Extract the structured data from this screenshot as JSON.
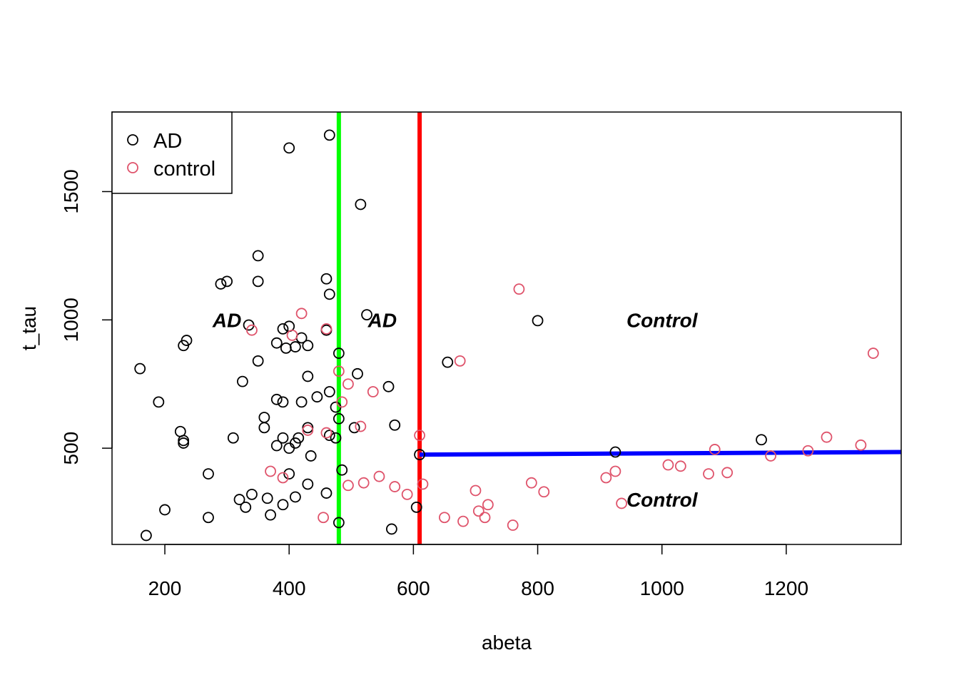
{
  "chart_data": {
    "type": "scatter",
    "xlabel": "abeta",
    "ylabel": "t_tau",
    "xlim": [
      115,
      1385
    ],
    "ylim": [
      125,
      1810
    ],
    "x_ticks": [
      200,
      400,
      600,
      800,
      1000,
      1200
    ],
    "y_ticks": [
      500,
      1000,
      1500
    ],
    "x_tick_labels": [
      "200",
      "400",
      "600",
      "800",
      "1000",
      "1200"
    ],
    "y_tick_labels": [
      "500",
      "1000",
      "1500"
    ],
    "grid": false,
    "legend": {
      "position": "top-left",
      "entries": [
        "AD",
        "control"
      ]
    },
    "series": [
      {
        "name": "AD",
        "color": "#000000",
        "marker": "open-circle",
        "points": [
          [
            465,
            1720
          ],
          [
            400,
            1670
          ],
          [
            515,
            1450
          ],
          [
            350,
            1250
          ],
          [
            460,
            1160
          ],
          [
            290,
            1140
          ],
          [
            300,
            1150
          ],
          [
            350,
            1150
          ],
          [
            465,
            1100
          ],
          [
            525,
            1020
          ],
          [
            335,
            980
          ],
          [
            400,
            975
          ],
          [
            800,
            997
          ],
          [
            390,
            965
          ],
          [
            460,
            960
          ],
          [
            235,
            920
          ],
          [
            230,
            900
          ],
          [
            380,
            910
          ],
          [
            420,
            930
          ],
          [
            395,
            890
          ],
          [
            410,
            895
          ],
          [
            430,
            900
          ],
          [
            480,
            870
          ],
          [
            160,
            810
          ],
          [
            350,
            840
          ],
          [
            655,
            835
          ],
          [
            325,
            760
          ],
          [
            430,
            780
          ],
          [
            510,
            790
          ],
          [
            465,
            720
          ],
          [
            445,
            700
          ],
          [
            560,
            740
          ],
          [
            190,
            680
          ],
          [
            380,
            690
          ],
          [
            390,
            680
          ],
          [
            420,
            680
          ],
          [
            475,
            660
          ],
          [
            360,
            620
          ],
          [
            480,
            615
          ],
          [
            360,
            580
          ],
          [
            430,
            580
          ],
          [
            570,
            590
          ],
          [
            505,
            580
          ],
          [
            225,
            565
          ],
          [
            230,
            530
          ],
          [
            230,
            520
          ],
          [
            310,
            540
          ],
          [
            390,
            540
          ],
          [
            415,
            540
          ],
          [
            465,
            550
          ],
          [
            475,
            540
          ],
          [
            380,
            510
          ],
          [
            400,
            500
          ],
          [
            410,
            520
          ],
          [
            435,
            470
          ],
          [
            610,
            475
          ],
          [
            925,
            485
          ],
          [
            1160,
            533
          ],
          [
            270,
            400
          ],
          [
            400,
            400
          ],
          [
            485,
            415
          ],
          [
            430,
            360
          ],
          [
            460,
            325
          ],
          [
            340,
            320
          ],
          [
            320,
            300
          ],
          [
            365,
            305
          ],
          [
            410,
            310
          ],
          [
            330,
            270
          ],
          [
            390,
            280
          ],
          [
            605,
            270
          ],
          [
            200,
            260
          ],
          [
            270,
            230
          ],
          [
            370,
            240
          ],
          [
            480,
            210
          ],
          [
            565,
            185
          ],
          [
            170,
            160
          ]
        ]
      },
      {
        "name": "control",
        "color": "#df536b",
        "marker": "open-circle",
        "points": [
          [
            770,
            1120
          ],
          [
            1340,
            870
          ],
          [
            420,
            1025
          ],
          [
            340,
            960
          ],
          [
            460,
            965
          ],
          [
            405,
            940
          ],
          [
            675,
            840
          ],
          [
            480,
            800
          ],
          [
            495,
            750
          ],
          [
            535,
            720
          ],
          [
            485,
            680
          ],
          [
            610,
            550
          ],
          [
            430,
            570
          ],
          [
            460,
            560
          ],
          [
            515,
            585
          ],
          [
            1265,
            543
          ],
          [
            1320,
            512
          ],
          [
            1085,
            495
          ],
          [
            1235,
            490
          ],
          [
            1175,
            470
          ],
          [
            1010,
            435
          ],
          [
            1030,
            430
          ],
          [
            1075,
            400
          ],
          [
            1105,
            405
          ],
          [
            925,
            410
          ],
          [
            910,
            385
          ],
          [
            370,
            410
          ],
          [
            390,
            385
          ],
          [
            495,
            355
          ],
          [
            520,
            365
          ],
          [
            545,
            390
          ],
          [
            570,
            350
          ],
          [
            590,
            320
          ],
          [
            615,
            360
          ],
          [
            700,
            335
          ],
          [
            790,
            365
          ],
          [
            810,
            330
          ],
          [
            720,
            280
          ],
          [
            705,
            255
          ],
          [
            715,
            230
          ],
          [
            680,
            215
          ],
          [
            650,
            230
          ],
          [
            760,
            200
          ],
          [
            935,
            285
          ],
          [
            455,
            230
          ]
        ]
      }
    ],
    "lines": [
      {
        "name": "green-split",
        "color": "#00ff00",
        "x1": 480,
        "y1": 125,
        "x2": 480,
        "y2": 1810
      },
      {
        "name": "red-split",
        "color": "#ff0000",
        "x1": 610,
        "y1": 125,
        "x2": 610,
        "y2": 1810
      },
      {
        "name": "blue-split",
        "color": "#0000ff",
        "x1": 610,
        "y1": 475,
        "x2": 1385,
        "y2": 485
      }
    ],
    "annotations": [
      {
        "text": "AD",
        "x": 300,
        "y": 1000
      },
      {
        "text": "AD",
        "x": 550,
        "y": 1000
      },
      {
        "text": "Control",
        "x": 1000,
        "y": 1000
      },
      {
        "text": "Control",
        "x": 1000,
        "y": 300
      }
    ]
  }
}
